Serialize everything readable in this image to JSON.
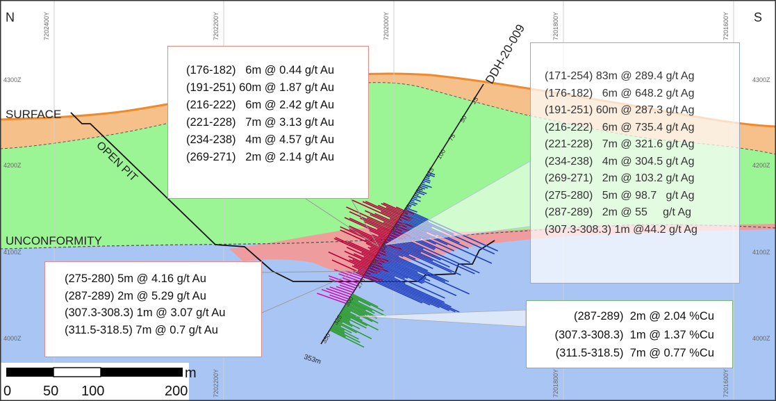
{
  "section": {
    "north_label": "N",
    "south_label": "S",
    "drillhole_name": "DDH-20-009",
    "end_depth_label": "353m",
    "labels": {
      "surface": "SURFACE",
      "open_pit": "OPEN PIT",
      "unconformity": "UNCONFORMITY"
    },
    "elevation_labels": [
      "4300Z",
      "4200Z",
      "4100Z",
      "4000Z"
    ],
    "northing_labels": [
      "7202400Y",
      "7202200Y",
      "7202000Y",
      "7201800Y",
      "7201600Y"
    ],
    "depth_ticks": [
      "25",
      "50",
      "75",
      "100",
      "125",
      "150",
      "175",
      "200",
      "225",
      "250",
      "275",
      "300",
      "325",
      "350"
    ],
    "colors": {
      "overburden": "#f5c08a",
      "green_unit": "#9cf594",
      "basement": "#a9c5f3",
      "mineralized_zone": "#f29a9a",
      "au_histogram": "#b30038",
      "ag_histogram": "#1f3fbf",
      "cu_histogram": "#2a9a2a",
      "pit_outline": "#111111"
    }
  },
  "scale_bar": {
    "unit": "m",
    "tick_labels": [
      "0",
      "50",
      "100",
      "200"
    ]
  },
  "callouts": {
    "au_upper": [
      "(176-182)   6m @ 0.44 g/t Au",
      "(191-251) 60m @ 1.87 g/t Au",
      "(216-222)   6m @ 2.42 g/t Au",
      "(221-228)   7m @ 3.13 g/t Au",
      "(234-238)   4m @ 4.57 g/t Au",
      "(269-271)   2m @ 2.14 g/t Au"
    ],
    "ag": [
      "(171-254) 83m @ 289.4 g/t Ag",
      "(176-182)   6m @ 648.2 g/t Ag",
      "(191-251) 60m @ 287.3 g/t Ag",
      "(216-222)   6m @ 735.4 g/t Ag",
      "(221-228)   7m @ 321.6 g/t Ag",
      "(234-238)   4m @ 304.5 g/t Ag",
      "(269-271)   2m @ 103.2 g/t Ag",
      "(275-280)   5m @ 98.7   g/t Ag",
      "(287-289)   2m @ 55     g/t Ag",
      "(307.3-308.3) 1m @44.2 g/t Ag"
    ],
    "au_lower": [
      "(275-280) 5m @ 4.16 g/t Au",
      "(287-289) 2m @ 5.29 g/t Au",
      "(307.3-308.3) 1m @ 3.07 g/t Au",
      "(311.5-318.5) 7m @ 0.7 g/t Au"
    ],
    "cu": [
      "(287-289)  2m @ 2.04 %Cu",
      "(307.3-308.3)  1m @ 1.37 %Cu",
      "(311.5-318.5)  7m @ 0.77 %Cu"
    ]
  }
}
